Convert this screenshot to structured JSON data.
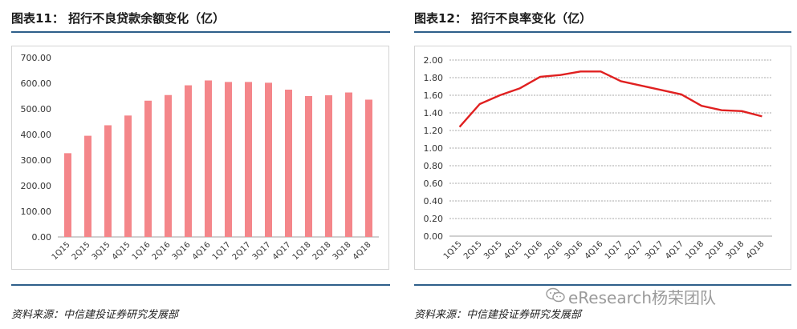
{
  "left": {
    "title": "图表11：  招行不良贷款余额变化（亿）",
    "source": "资料来源：中信建投证券研究发展部"
  },
  "right": {
    "title": "图表12：  招行不良率变化（亿）",
    "source": "资料来源：中信建投证券研究发展部"
  },
  "watermark": "eResearch杨荣团队",
  "chart_data": [
    {
      "type": "bar",
      "categories": [
        "1Q15",
        "2Q15",
        "3Q15",
        "4Q15",
        "1Q16",
        "2Q16",
        "3Q16",
        "4Q16",
        "1Q17",
        "2Q17",
        "3Q17",
        "4Q17",
        "1Q18",
        "2Q18",
        "3Q18",
        "4Q18"
      ],
      "series": [
        {
          "values": [
            327,
            395,
            436,
            474,
            532,
            554,
            592,
            611,
            605,
            605,
            602,
            575,
            550,
            553,
            564,
            536
          ],
          "color": "#f4868a"
        }
      ],
      "yticks": [
        "0.00",
        "100.00",
        "200.00",
        "300.00",
        "400.00",
        "500.00",
        "600.00",
        "700.00"
      ],
      "ylim": [
        0,
        700
      ],
      "grid": false
    },
    {
      "type": "line",
      "categories": [
        "1Q15",
        "2Q15",
        "3Q15",
        "4Q15",
        "1Q16",
        "2Q16",
        "3Q16",
        "4Q16",
        "1Q17",
        "2Q17",
        "3Q17",
        "4Q17",
        "1Q18",
        "2Q18",
        "3Q18",
        "4Q18"
      ],
      "series": [
        {
          "values": [
            1.24,
            1.5,
            1.6,
            1.68,
            1.81,
            1.83,
            1.87,
            1.87,
            1.76,
            1.71,
            1.66,
            1.61,
            1.48,
            1.43,
            1.42,
            1.36
          ],
          "color": "#e02020"
        }
      ],
      "yticks": [
        "0.00",
        "0.20",
        "0.40",
        "0.60",
        "0.80",
        "1.00",
        "1.20",
        "1.40",
        "1.60",
        "1.80",
        "2.00"
      ],
      "ylim": [
        0,
        2
      ],
      "grid": true
    }
  ]
}
